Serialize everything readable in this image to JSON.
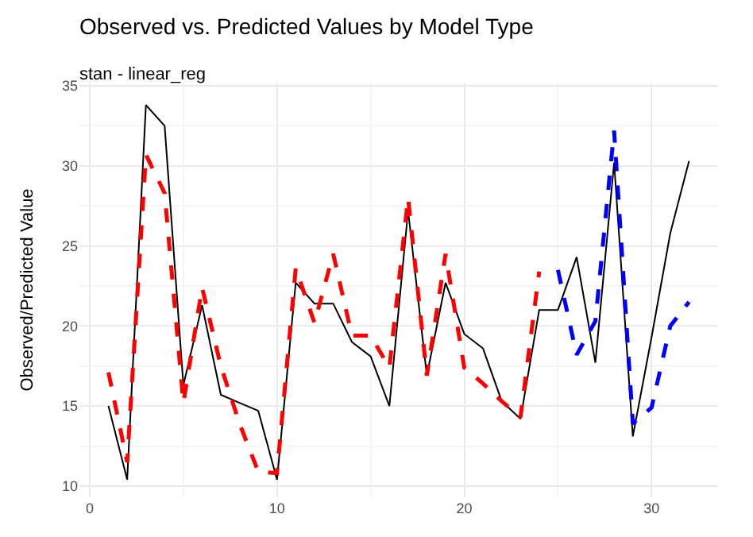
{
  "chart_data": {
    "type": "line",
    "title": "Observed vs. Predicted Values by Model Type",
    "subtitle": "stan - linear_reg",
    "ylabel": "Observed/Predicted Value",
    "series": [
      {
        "color": "#000000",
        "line_style": "solid",
        "x": [
          1,
          2,
          3,
          4,
          5,
          6,
          7,
          8,
          9,
          10,
          11,
          12,
          13,
          14,
          15,
          16,
          17,
          18,
          19,
          20,
          21,
          22,
          23,
          24,
          25,
          26,
          27,
          28,
          29,
          30,
          31,
          32
        ],
        "values": [
          15.0,
          10.4,
          33.8,
          32.5,
          16.3,
          21.3,
          15.7,
          15.2,
          14.7,
          10.4,
          22.7,
          21.4,
          21.4,
          19.0,
          18.1,
          15.0,
          27.2,
          16.9,
          22.7,
          19.5,
          18.6,
          15.3,
          14.2,
          21.0,
          21.0,
          24.3,
          17.7,
          30.2,
          13.1,
          19.3,
          25.8,
          30.3
        ]
      },
      {
        "color": "#ff0000",
        "line_style": "dashed",
        "x": [
          1,
          2,
          3,
          4,
          5,
          6,
          7,
          8,
          9,
          10,
          11,
          12,
          13,
          14,
          15,
          16,
          17,
          18,
          19,
          20,
          21,
          22,
          23,
          24
        ],
        "values": [
          17.1,
          11.5,
          30.7,
          28.3,
          15.2,
          22.4,
          17.5,
          13.9,
          10.9,
          10.8,
          23.6,
          20.2,
          24.5,
          19.4,
          19.4,
          17.4,
          28.0,
          16.9,
          24.5,
          17.4,
          16.4,
          15.3,
          14.3,
          23.4
        ]
      },
      {
        "color": "#0000ff",
        "line_style": "dashed",
        "x": [
          25,
          26,
          27,
          28,
          29,
          30,
          31,
          32
        ],
        "values": [
          23.5,
          18.2,
          20.3,
          32.2,
          13.9,
          14.9,
          20.0,
          21.5
        ]
      }
    ],
    "xlim": [
      -0.55,
      33.55
    ],
    "ylim": [
      9.3,
      35.2
    ],
    "xticks": [
      0,
      10,
      20,
      30
    ],
    "yticks": [
      10,
      15,
      20,
      25,
      30,
      35
    ],
    "grid": true,
    "marker": "none"
  }
}
